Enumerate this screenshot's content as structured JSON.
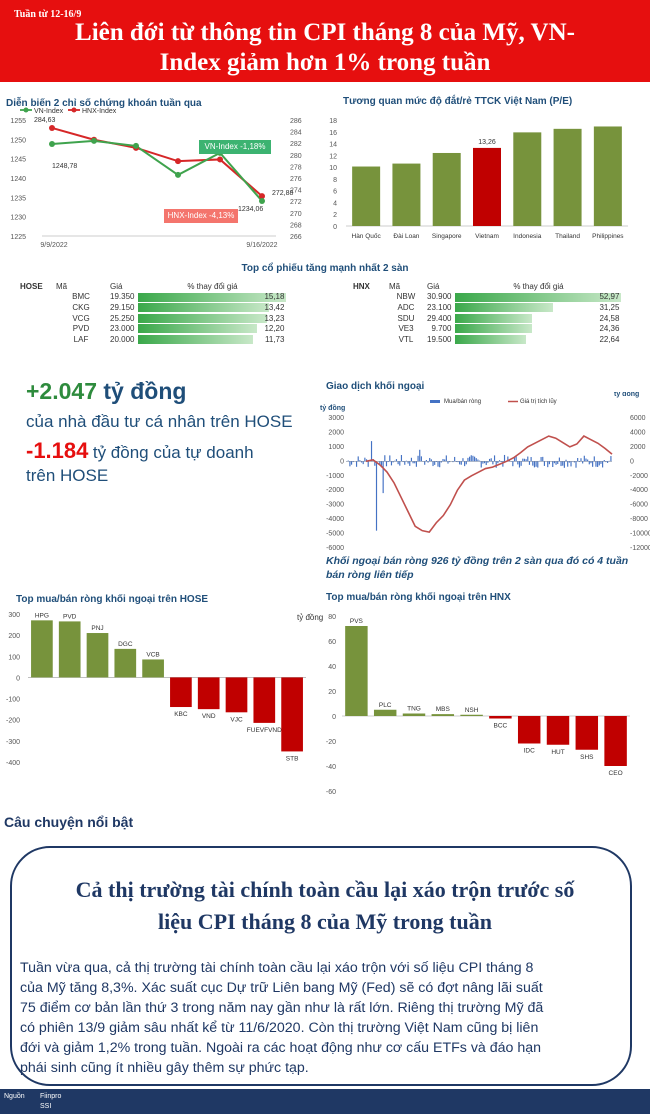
{
  "header": {
    "week": "Tuần từ 12-16/9",
    "title_line1": "Liên đới từ thông tin CPI tháng 8 của Mỹ, VN-",
    "title_line2": "Index giảm hơn 1% trong tuần"
  },
  "index_chart": {
    "title": "Diễn biến 2 chỉ số chứng khoán tuần qua",
    "legend": [
      "VN-Index",
      "HNX-Index"
    ],
    "colors": {
      "vn": "#3fa34d",
      "hnx": "#d62728"
    },
    "left_axis": {
      "min": 1225,
      "max": 1255,
      "ticks": [
        "1255",
        "1250",
        "1245",
        "1240",
        "1235",
        "1230",
        "1225"
      ]
    },
    "right_axis": {
      "min": 266,
      "max": 286,
      "ticks": [
        "286",
        "284",
        "282",
        "280",
        "278",
        "276",
        "274",
        "272",
        "270",
        "268",
        "266"
      ]
    },
    "x_labels": [
      "9/9/2022",
      "9/16/2022"
    ],
    "vn_values": [
      1248.78,
      1249.6,
      1248.3,
      1240.8,
      1246.5,
      1234.06
    ],
    "hnx_values": [
      284.63,
      282.6,
      281.2,
      278.9,
      279.2,
      272.88
    ],
    "labels": {
      "vn_start": "1248,78",
      "hnx_start": "284,63",
      "vn_end": "1234,06",
      "hnx_end": "272,88"
    },
    "callout_vn": "VN-Index -1,18%",
    "callout_hnx": "HNX-Index -4,13%"
  },
  "pe_chart": {
    "title": "Tương quan mức độ đắt/rẻ TTCK Việt Nam (P/E)",
    "categories": [
      "Hàn Quốc",
      "Đài Loan",
      "Singapore",
      "Vietnam",
      "Indonesia",
      "Thailand",
      "Philippines"
    ],
    "values": [
      10.1,
      10.6,
      12.4,
      13.26,
      15.9,
      16.5,
      16.9
    ],
    "ticks": [
      "0",
      "2",
      "4",
      "6",
      "8",
      "10",
      "12",
      "14",
      "16",
      "18"
    ],
    "highlight_label": "13,26",
    "colors": {
      "bar": "#77933c",
      "highlight": "#c00000"
    }
  },
  "top_stocks": {
    "title": "Top cổ phiếu tăng mạnh nhất 2 sàn",
    "hose": {
      "exchange": "HOSE",
      "headers": [
        "Mã",
        "Giá",
        "% thay đổi giá"
      ],
      "rows": [
        {
          "code": "BMC",
          "price": "19.350",
          "pct": "15,18",
          "value": 15.18
        },
        {
          "code": "CKG",
          "price": "29.150",
          "pct": "13,42",
          "value": 13.42
        },
        {
          "code": "VCG",
          "price": "25.250",
          "pct": "13,23",
          "value": 13.23
        },
        {
          "code": "PVD",
          "price": "23.000",
          "pct": "12,20",
          "value": 12.2
        },
        {
          "code": "LAF",
          "price": "20.000",
          "pct": "11,73",
          "value": 11.73
        }
      ]
    },
    "hnx": {
      "exchange": "HNX",
      "headers": [
        "Mã",
        "Giá",
        "% thay đổi giá"
      ],
      "rows": [
        {
          "code": "NBW",
          "price": "30.900",
          "pct": "52,97",
          "value": 52.97
        },
        {
          "code": "ADC",
          "price": "23.100",
          "pct": "31,25",
          "value": 31.25
        },
        {
          "code": "SDU",
          "price": "29.400",
          "pct": "24,58",
          "value": 24.58
        },
        {
          "code": "VE3",
          "price": "9.700",
          "pct": "24,36",
          "value": 24.36
        },
        {
          "code": "VTL",
          "price": "19.500",
          "pct": "22,64",
          "value": 22.64
        }
      ]
    }
  },
  "flows": {
    "individual_value": "+2.047",
    "individual_unit": "tỷ đồng",
    "individual_desc": "của nhà đầu tư cá nhân trên HOSE",
    "prop_value": "-1.184",
    "prop_desc_a": "tỷ đồng của tự doanh",
    "prop_desc_b": "trên HOSE"
  },
  "foreign_chart": {
    "title": "Giao dịch khối ngoại",
    "unit_left": "tỷ đồng",
    "unit_right": "tỷ đồng",
    "legend": [
      "Mua/bán ròng",
      "Giá trị tích lũy"
    ],
    "left_ticks": [
      "3000",
      "2000",
      "1000",
      "0",
      "-1000",
      "-2000",
      "-3000",
      "-4000",
      "-5000",
      "-6000"
    ],
    "right_ticks": [
      "6000",
      "4000",
      "2000",
      "0",
      "-2000",
      "-4000",
      "-6000",
      "-8000",
      "-10000",
      "-12000"
    ],
    "caption_1": "Khối ngoại bán ròng 926 tỷ đồng trên 2 sàn qua đó có 4 tuần",
    "caption_2": "bán ròng liên tiếp"
  },
  "hose_foreign": {
    "title": "Top mua/bán ròng khối ngoại trên HOSE",
    "unit": "tỷ đồng",
    "ticks": [
      "300",
      "200",
      "100",
      "0",
      "-100",
      "-200",
      "-300",
      "-400"
    ],
    "categories": [
      "HPG",
      "PVD",
      "PNJ",
      "DGC",
      "VCB",
      "KBC",
      "VND",
      "VJC",
      "FUEVFVND",
      "STB"
    ],
    "values": [
      270,
      265,
      210,
      135,
      85,
      -140,
      -150,
      -165,
      -215,
      -350
    ]
  },
  "hnx_foreign": {
    "title": "Top mua/bán ròng khối ngoại trên HNX",
    "ticks": [
      "80",
      "60",
      "40",
      "20",
      "0",
      "-20",
      "-40",
      "-60"
    ],
    "categories": [
      "PVS",
      "PLC",
      "TNG",
      "MBS",
      "NSH",
      "BCC",
      "IDC",
      "HUT",
      "SHS",
      "CEO"
    ],
    "values": [
      72,
      5,
      2,
      1.5,
      1,
      -2,
      -22,
      -23,
      -27,
      -40
    ]
  },
  "story": {
    "section": "Câu chuyện nổi bật",
    "title_line1": "Cả thị trường tài chính toàn cầu lại xáo trộn trước số",
    "title_line2": "liệu CPI tháng 8 của Mỹ trong tuần",
    "body_lines": [
      "Tuần vừa qua, cả thị trường tài chính toàn cầu lại xáo trộn với số liệu CPI tháng 8",
      "của Mỹ tăng 8,3%. Xác suất cục Dự trữ Liên bang Mỹ (Fed) sẽ có đợt nâng lãi suất",
      "75 điểm cơ bản lần thứ 3 trong năm nay gần như là rất lớn. Riêng thị trường Mỹ đã",
      "có phiên 13/9 giảm sâu nhất kể từ 11/6/2020. Còn thị trường Việt Nam cũng bị liên",
      "đới và giảm 1,2% trong tuần. Ngoài ra các hoạt động như cơ cấu ETFs và đáo hạn",
      "phái sinh cũng ít nhiều gây thêm sự phức tạp."
    ]
  },
  "footer": {
    "source_label": "Nguồn",
    "source_1": "Fiinpro",
    "source_2": "SSI"
  }
}
